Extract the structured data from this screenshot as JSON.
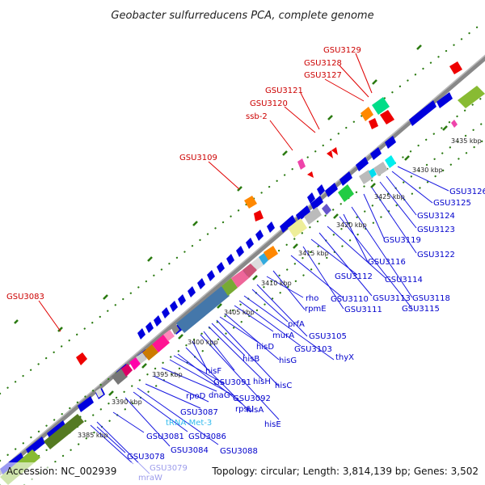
{
  "title": "Geobacter sulfurreducens PCA, complete genome",
  "footer": {
    "accession": "Accession: NC_002939",
    "summary": "Topology: circular; Length: 3,814,139 bp; Genes: 3,502"
  },
  "colors": {
    "backbone": "#8c8c8c",
    "forward_label": "#cc0000",
    "reverse_label": "#0000cc",
    "trna_label": "#33bbee",
    "cds_blue": "#0000dd",
    "tick_green": "#2a7a10"
  },
  "scale_ticks": [
    "3385 kbp",
    "3390 kbp",
    "3395 kbp",
    "3400 kbp",
    "3405 kbp",
    "3410 kbp",
    "3415 kbp",
    "3420 kbp",
    "3425 kbp",
    "3430 kbp",
    "3435 kbp"
  ],
  "forward_genes": [
    "GSU3083",
    "GSU3109",
    "ssb-2",
    "GSU3120",
    "GSU3121",
    "GSU3127",
    "GSU3128",
    "GSU3129"
  ],
  "reverse_genes": [
    "mraW",
    "GSU3079",
    "GSU3078",
    "GSU3081",
    "GSU3084",
    "GSU3086",
    "GSU3088",
    "GSU3087",
    "tRNA-Met-3",
    "rpoD",
    "dnaG",
    "GSU3092",
    "GSU3091",
    "rpsU",
    "hisA",
    "hisE",
    "hisF",
    "hisH",
    "hisB",
    "hisC",
    "hisD",
    "hisG",
    "murA",
    "GSU3103",
    "thyX",
    "prfA",
    "GSU3105",
    "rho",
    "rpmE",
    "GSU3110",
    "GSU3111",
    "GSU3112",
    "GSU3113",
    "GSU3114",
    "GSU3115",
    "GSU3116",
    "GSU3118",
    "GSU3119",
    "GSU3122",
    "GSU3123",
    "GSU3124",
    "GSU3125",
    "GSU3126"
  ]
}
